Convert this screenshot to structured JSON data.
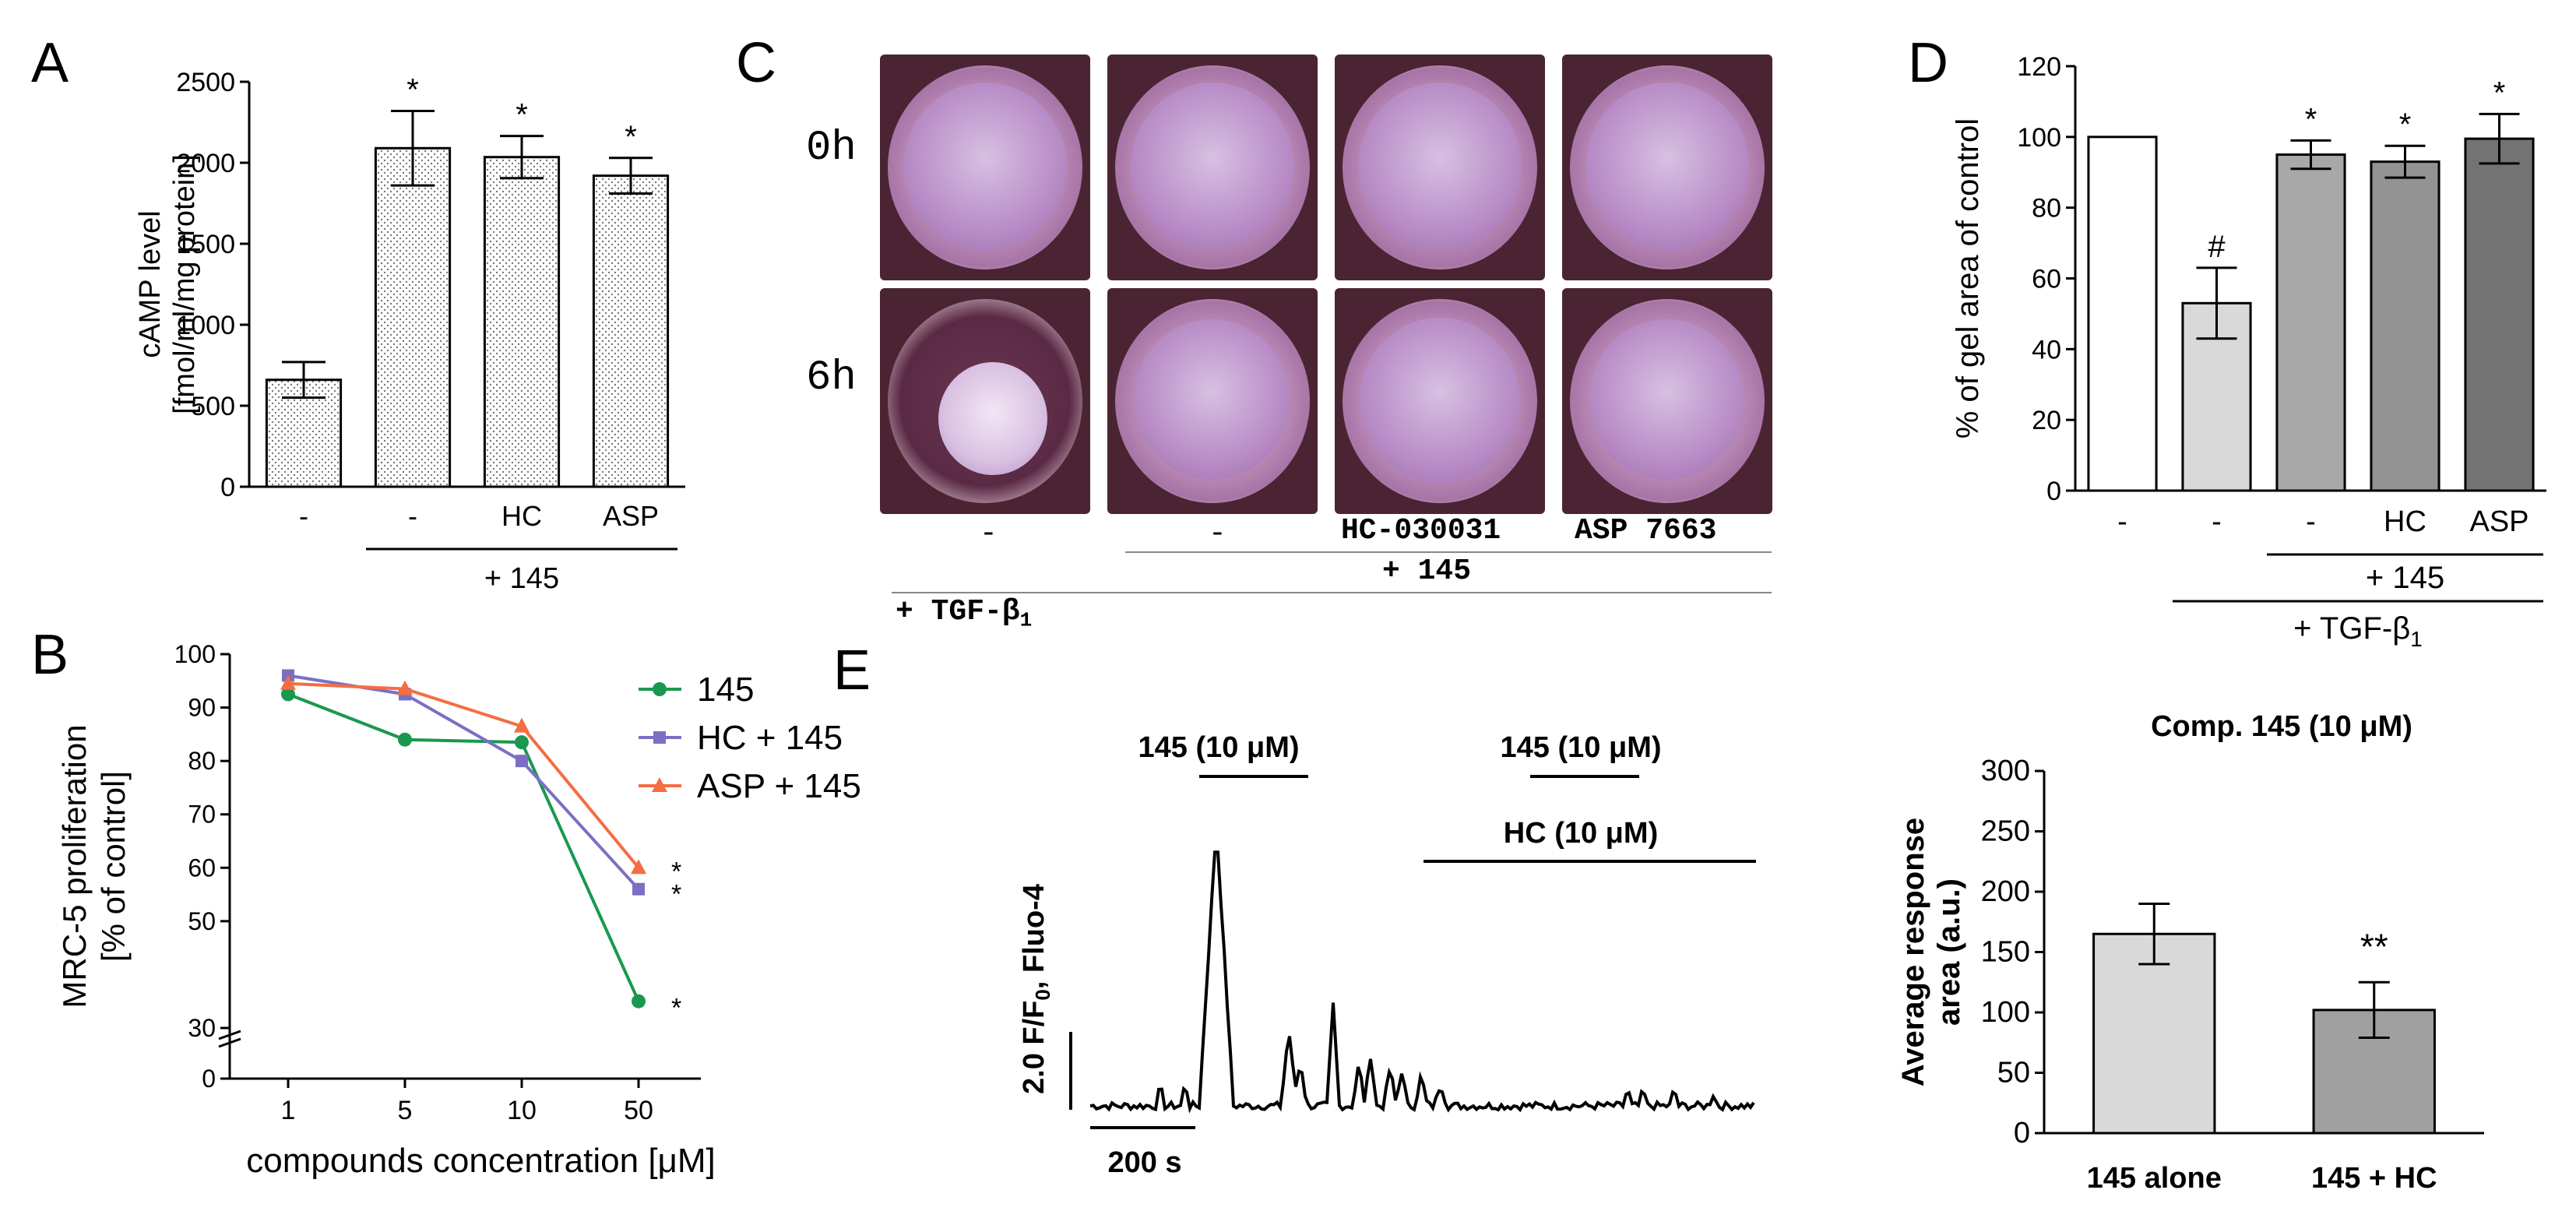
{
  "panels": {
    "A": "A",
    "B": "B",
    "C": "C",
    "D": "D",
    "E": "E"
  },
  "chart_data": [
    {
      "panel": "A",
      "type": "bar",
      "ylabel": "cAMP level",
      "ylabel2": "[fmol/ml/mg protein]",
      "ylim": [
        0,
        2500
      ],
      "yticks": [
        0,
        500,
        1000,
        1500,
        2000,
        2500
      ],
      "categories": [
        "-",
        "-",
        "HC",
        "ASP"
      ],
      "values": [
        660,
        2090,
        2035,
        1920
      ],
      "errors": [
        110,
        230,
        130,
        110
      ],
      "significance": [
        "",
        "*",
        "*",
        "*"
      ],
      "group_label": "+ 145",
      "fill": "dotted"
    },
    {
      "panel": "B",
      "type": "line",
      "ylabel": "MRC-5 proliferation",
      "ylabel2": "[% of control]",
      "xlabel": "compounds concentration [μM]",
      "categories": [
        "1",
        "5",
        "10",
        "50"
      ],
      "yticks": [
        0,
        30,
        50,
        60,
        70,
        80,
        90,
        100
      ],
      "series": [
        {
          "name": "145",
          "values": [
            92.5,
            84,
            83.5,
            35
          ],
          "color": "#1a9850",
          "marker": "circle"
        },
        {
          "name": "HC + 145",
          "values": [
            96,
            92.5,
            80,
            56
          ],
          "color": "#7b6fc4",
          "marker": "square"
        },
        {
          "name": "ASP + 145",
          "values": [
            94.5,
            93.5,
            86.5,
            60
          ],
          "color": "#f46d43",
          "marker": "triangle"
        }
      ],
      "significance": [
        "*",
        "*",
        "*"
      ]
    },
    {
      "panel": "D",
      "type": "bar",
      "ylabel": "% of gel area of control",
      "ylim": [
        0,
        120
      ],
      "yticks": [
        0,
        20,
        40,
        60,
        80,
        100,
        120
      ],
      "categories": [
        "-",
        "-",
        "-",
        "HC",
        "ASP"
      ],
      "values": [
        100,
        53,
        95,
        93,
        99.5
      ],
      "errors": [
        0,
        10,
        4,
        4.5,
        7
      ],
      "significance": [
        "",
        "#",
        "*",
        "*",
        "*"
      ],
      "colors": [
        "#ffffff",
        "#d9d9d9",
        "#a8a8a8",
        "#939393",
        "#737373"
      ],
      "group_label_1": "+ 145",
      "group_label_2": "+ TGF-β",
      "group_label_2_sub": "1"
    },
    {
      "panel": "E",
      "type": "bar",
      "title": "Comp. 145 (10 μM)",
      "ylabel": "Average response",
      "ylabel2": "area (a.u.)",
      "ylim": [
        0,
        300
      ],
      "yticks": [
        0,
        50,
        100,
        150,
        200,
        250,
        300
      ],
      "categories": [
        "145 alone",
        "145 + HC"
      ],
      "values": [
        165,
        102
      ],
      "errors": [
        25,
        23
      ],
      "significance": [
        "",
        "**"
      ],
      "colors": [
        "#d9d9d9",
        "#a0a0a0"
      ]
    }
  ],
  "trace": {
    "label_145": "145 (10 μM)",
    "label_145b": "145 (10 μM)",
    "label_hc": "HC (10 μM)",
    "scale_y": "2.0 F/F",
    "scale_y_sub": "0",
    "scale_y_suffix": ", Fluo-4",
    "scale_x": "200 s"
  },
  "photo_panel": {
    "row_labels": [
      "0h",
      "6h"
    ],
    "column_labels": [
      "-",
      "-",
      "HC-030031",
      "ASP 7663"
    ],
    "group_label_1": "+ 145",
    "group_label_2": "+ TGF-β",
    "group_label_2_sub": "1"
  }
}
